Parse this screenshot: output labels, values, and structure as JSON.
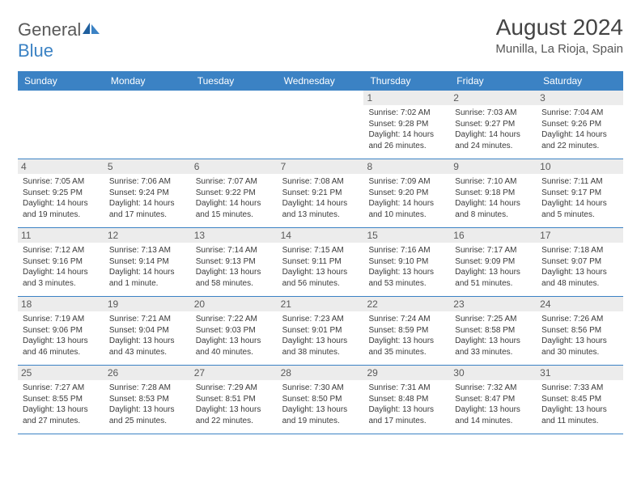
{
  "brand": {
    "part1": "General",
    "part2": "Blue"
  },
  "title": "August 2024",
  "location": "Munilla, La Rioja, Spain",
  "colors": {
    "header_bg": "#3b82c4",
    "header_fg": "#ffffff",
    "daynum_bg": "#ececec",
    "row_border": "#3b82c4",
    "text": "#3a3a3a"
  },
  "dow": [
    "Sunday",
    "Monday",
    "Tuesday",
    "Wednesday",
    "Thursday",
    "Friday",
    "Saturday"
  ],
  "weeks": [
    [
      {
        "n": "",
        "empty": true
      },
      {
        "n": "",
        "empty": true
      },
      {
        "n": "",
        "empty": true
      },
      {
        "n": "",
        "empty": true
      },
      {
        "n": "1",
        "sr": "7:02 AM",
        "ss": "9:28 PM",
        "dl": "14 hours and 26 minutes."
      },
      {
        "n": "2",
        "sr": "7:03 AM",
        "ss": "9:27 PM",
        "dl": "14 hours and 24 minutes."
      },
      {
        "n": "3",
        "sr": "7:04 AM",
        "ss": "9:26 PM",
        "dl": "14 hours and 22 minutes."
      }
    ],
    [
      {
        "n": "4",
        "sr": "7:05 AM",
        "ss": "9:25 PM",
        "dl": "14 hours and 19 minutes."
      },
      {
        "n": "5",
        "sr": "7:06 AM",
        "ss": "9:24 PM",
        "dl": "14 hours and 17 minutes."
      },
      {
        "n": "6",
        "sr": "7:07 AM",
        "ss": "9:22 PM",
        "dl": "14 hours and 15 minutes."
      },
      {
        "n": "7",
        "sr": "7:08 AM",
        "ss": "9:21 PM",
        "dl": "14 hours and 13 minutes."
      },
      {
        "n": "8",
        "sr": "7:09 AM",
        "ss": "9:20 PM",
        "dl": "14 hours and 10 minutes."
      },
      {
        "n": "9",
        "sr": "7:10 AM",
        "ss": "9:18 PM",
        "dl": "14 hours and 8 minutes."
      },
      {
        "n": "10",
        "sr": "7:11 AM",
        "ss": "9:17 PM",
        "dl": "14 hours and 5 minutes."
      }
    ],
    [
      {
        "n": "11",
        "sr": "7:12 AM",
        "ss": "9:16 PM",
        "dl": "14 hours and 3 minutes."
      },
      {
        "n": "12",
        "sr": "7:13 AM",
        "ss": "9:14 PM",
        "dl": "14 hours and 1 minute."
      },
      {
        "n": "13",
        "sr": "7:14 AM",
        "ss": "9:13 PM",
        "dl": "13 hours and 58 minutes."
      },
      {
        "n": "14",
        "sr": "7:15 AM",
        "ss": "9:11 PM",
        "dl": "13 hours and 56 minutes."
      },
      {
        "n": "15",
        "sr": "7:16 AM",
        "ss": "9:10 PM",
        "dl": "13 hours and 53 minutes."
      },
      {
        "n": "16",
        "sr": "7:17 AM",
        "ss": "9:09 PM",
        "dl": "13 hours and 51 minutes."
      },
      {
        "n": "17",
        "sr": "7:18 AM",
        "ss": "9:07 PM",
        "dl": "13 hours and 48 minutes."
      }
    ],
    [
      {
        "n": "18",
        "sr": "7:19 AM",
        "ss": "9:06 PM",
        "dl": "13 hours and 46 minutes."
      },
      {
        "n": "19",
        "sr": "7:21 AM",
        "ss": "9:04 PM",
        "dl": "13 hours and 43 minutes."
      },
      {
        "n": "20",
        "sr": "7:22 AM",
        "ss": "9:03 PM",
        "dl": "13 hours and 40 minutes."
      },
      {
        "n": "21",
        "sr": "7:23 AM",
        "ss": "9:01 PM",
        "dl": "13 hours and 38 minutes."
      },
      {
        "n": "22",
        "sr": "7:24 AM",
        "ss": "8:59 PM",
        "dl": "13 hours and 35 minutes."
      },
      {
        "n": "23",
        "sr": "7:25 AM",
        "ss": "8:58 PM",
        "dl": "13 hours and 33 minutes."
      },
      {
        "n": "24",
        "sr": "7:26 AM",
        "ss": "8:56 PM",
        "dl": "13 hours and 30 minutes."
      }
    ],
    [
      {
        "n": "25",
        "sr": "7:27 AM",
        "ss": "8:55 PM",
        "dl": "13 hours and 27 minutes."
      },
      {
        "n": "26",
        "sr": "7:28 AM",
        "ss": "8:53 PM",
        "dl": "13 hours and 25 minutes."
      },
      {
        "n": "27",
        "sr": "7:29 AM",
        "ss": "8:51 PM",
        "dl": "13 hours and 22 minutes."
      },
      {
        "n": "28",
        "sr": "7:30 AM",
        "ss": "8:50 PM",
        "dl": "13 hours and 19 minutes."
      },
      {
        "n": "29",
        "sr": "7:31 AM",
        "ss": "8:48 PM",
        "dl": "13 hours and 17 minutes."
      },
      {
        "n": "30",
        "sr": "7:32 AM",
        "ss": "8:47 PM",
        "dl": "13 hours and 14 minutes."
      },
      {
        "n": "31",
        "sr": "7:33 AM",
        "ss": "8:45 PM",
        "dl": "13 hours and 11 minutes."
      }
    ]
  ],
  "labels": {
    "sunrise": "Sunrise: ",
    "sunset": "Sunset: ",
    "daylight": "Daylight: "
  }
}
